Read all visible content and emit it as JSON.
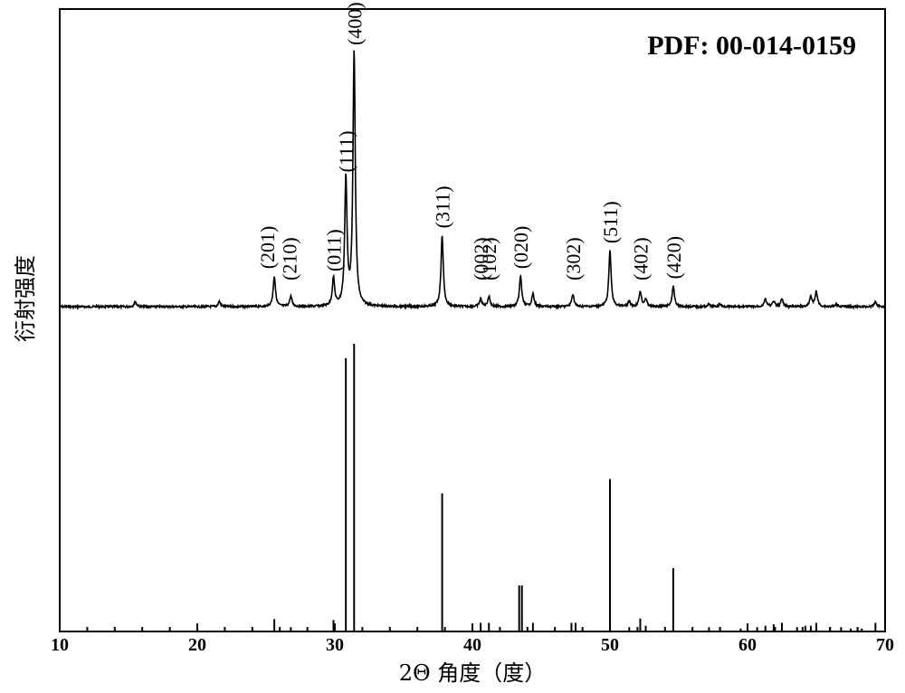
{
  "chart_data": {
    "type": "line",
    "xlabel": "2Θ 角度（度）",
    "ylabel": "衍射强度",
    "xlim": [
      10,
      70
    ],
    "xticks": [
      "10",
      "20",
      "30",
      "40",
      "50",
      "60",
      "70"
    ],
    "grid": false,
    "reference_label": "PDF: 00-014-0159",
    "pattern_peaks": [
      {
        "x": 15.5,
        "h": 0.02
      },
      {
        "x": 21.6,
        "h": 0.02
      },
      {
        "x": 25.6,
        "h": 0.12,
        "label": "(201)"
      },
      {
        "x": 26.8,
        "h": 0.04,
        "label": "(210)"
      },
      {
        "x": 29.9,
        "h": 0.11,
        "label": "(011)"
      },
      {
        "x": 30.8,
        "h": 0.5,
        "label": "(111)"
      },
      {
        "x": 31.4,
        "h": 1.0,
        "label": "(400)"
      },
      {
        "x": 37.8,
        "h": 0.28,
        "label": "(311)"
      },
      {
        "x": 40.6,
        "h": 0.03,
        "label": "(002)"
      },
      {
        "x": 41.2,
        "h": 0.04,
        "label": "(102)"
      },
      {
        "x": 43.5,
        "h": 0.12,
        "label": "(020)"
      },
      {
        "x": 44.4,
        "h": 0.05
      },
      {
        "x": 47.3,
        "h": 0.05,
        "label": "(302)"
      },
      {
        "x": 50.0,
        "h": 0.22,
        "label": "(511)"
      },
      {
        "x": 51.4,
        "h": 0.02
      },
      {
        "x": 52.2,
        "h": 0.06,
        "label": "(402)"
      },
      {
        "x": 52.6,
        "h": 0.03
      },
      {
        "x": 54.6,
        "h": 0.08,
        "label": "(420)"
      },
      {
        "x": 57.2,
        "h": 0.01
      },
      {
        "x": 58.0,
        "h": 0.01
      },
      {
        "x": 61.3,
        "h": 0.03
      },
      {
        "x": 61.9,
        "h": 0.02
      },
      {
        "x": 62.5,
        "h": 0.03
      },
      {
        "x": 64.6,
        "h": 0.04
      },
      {
        "x": 65.0,
        "h": 0.06
      },
      {
        "x": 66.5,
        "h": 0.01
      },
      {
        "x": 69.3,
        "h": 0.02
      }
    ],
    "reference_lines": [
      {
        "x": 25.6,
        "h": 0.043
      },
      {
        "x": 26.8,
        "h": 0.015
      },
      {
        "x": 29.9,
        "h": 0.04
      },
      {
        "x": 30.8,
        "h": 0.95
      },
      {
        "x": 31.4,
        "h": 1.0
      },
      {
        "x": 37.8,
        "h": 0.48
      },
      {
        "x": 40.6,
        "h": 0.03
      },
      {
        "x": 41.2,
        "h": 0.03
      },
      {
        "x": 43.4,
        "h": 0.16
      },
      {
        "x": 43.6,
        "h": 0.16
      },
      {
        "x": 44.4,
        "h": 0.03
      },
      {
        "x": 47.2,
        "h": 0.03
      },
      {
        "x": 47.5,
        "h": 0.03
      },
      {
        "x": 50.0,
        "h": 0.53
      },
      {
        "x": 51.4,
        "h": 0.015
      },
      {
        "x": 52.2,
        "h": 0.045
      },
      {
        "x": 52.6,
        "h": 0.02
      },
      {
        "x": 54.6,
        "h": 0.22
      },
      {
        "x": 57.2,
        "h": 0.015
      },
      {
        "x": 58.0,
        "h": 0.015
      },
      {
        "x": 59.5,
        "h": 0.01
      },
      {
        "x": 60.7,
        "h": 0.015
      },
      {
        "x": 61.3,
        "h": 0.02
      },
      {
        "x": 61.9,
        "h": 0.025
      },
      {
        "x": 62.5,
        "h": 0.03
      },
      {
        "x": 63.6,
        "h": 0.015
      },
      {
        "x": 64.2,
        "h": 0.02
      },
      {
        "x": 64.6,
        "h": 0.02
      },
      {
        "x": 65.0,
        "h": 0.03
      },
      {
        "x": 66.0,
        "h": 0.015
      },
      {
        "x": 66.8,
        "h": 0.015
      },
      {
        "x": 67.5,
        "h": 0.01
      },
      {
        "x": 68.3,
        "h": 0.01
      },
      {
        "x": 69.3,
        "h": 0.03
      }
    ]
  }
}
